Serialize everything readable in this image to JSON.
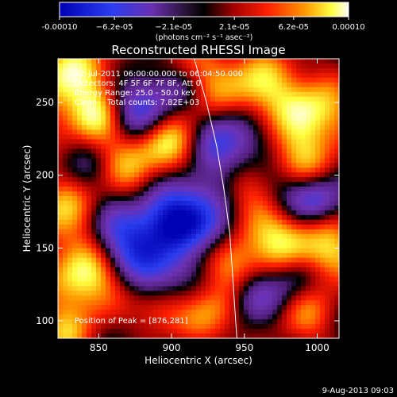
{
  "chart_data": {
    "type": "heatmap",
    "title": "Reconstructed RHESSI Image",
    "xlabel": "Heliocentric X (arcsec)",
    "ylabel": "Heliocentric Y (arcsec)",
    "xlim": [
      822,
      1015
    ],
    "ylim": [
      88,
      280
    ],
    "x_ticks": [
      850,
      900,
      950,
      1000
    ],
    "y_ticks": [
      100,
      150,
      200,
      250
    ],
    "colorbar": {
      "min": -0.0001,
      "max": 0.0001,
      "tick_labels": [
        "-0.00010",
        "−6.2e-05",
        "−2.1e-05",
        "2.1e-05",
        "6.2e-05",
        "0.00010"
      ],
      "tick_values": [
        -0.0001,
        -6.2e-05,
        -2.1e-05,
        2.1e-05,
        6.2e-05,
        0.0001
      ],
      "units": "(photons cm⁻² s⁻¹ asec⁻²)"
    },
    "annotations": [
      "22-Jul-2011 06:00:00.000 to 06:04:50.000",
      "Detectors: 4F 5F 6F 7F 8F, Att 0",
      "Energy Range: 25.0 - 50.0 keV",
      "Clean    Total counts: 7.82E+03"
    ],
    "peak_label": "Position of Peak = [876,281]",
    "peak_position": [
      876,
      281
    ],
    "timestamp": "9-Aug-2013 09:03",
    "grid": false,
    "colormap": [
      "#0000b4",
      "#2b3df0",
      "#4e2c9c",
      "#7a2fb4",
      "#000000",
      "#a00000",
      "#ff2000",
      "#ff9a00",
      "#ffff40",
      "#ffffff"
    ],
    "limb_curve": [
      [
        915,
        282
      ],
      [
        924,
        250
      ],
      [
        931,
        220
      ],
      [
        936,
        190
      ],
      [
        940,
        160
      ],
      [
        942,
        130
      ],
      [
        944,
        100
      ],
      [
        945,
        86
      ]
    ]
  }
}
